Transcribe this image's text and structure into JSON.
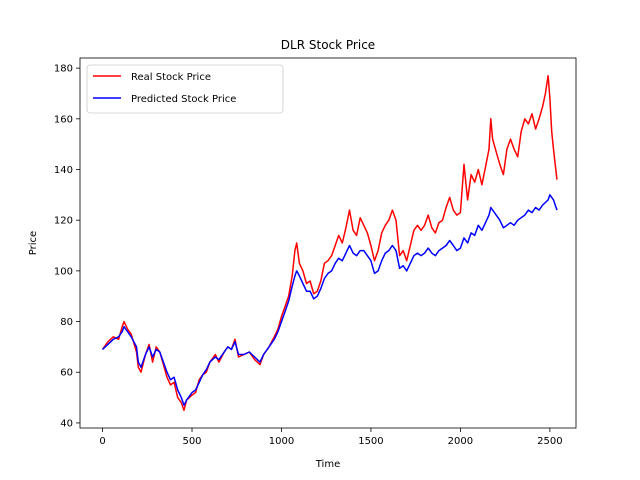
{
  "chart_data": {
    "type": "line",
    "title": "DLR Stock Price",
    "xlabel": "Time",
    "ylabel": "Price",
    "xlim": [
      -126,
      2646
    ],
    "ylim": [
      38,
      184
    ],
    "xticks": [
      0,
      500,
      1000,
      1500,
      2000,
      2500
    ],
    "yticks": [
      40,
      60,
      80,
      100,
      120,
      140,
      160,
      180
    ],
    "grid": false,
    "legend_placement": "top-left",
    "series": [
      {
        "name": "Real Stock Price",
        "color": "#ff0000",
        "points": [
          [
            0,
            69
          ],
          [
            30,
            72
          ],
          [
            60,
            74
          ],
          [
            90,
            73
          ],
          [
            110,
            78
          ],
          [
            120,
            80
          ],
          [
            140,
            77
          ],
          [
            160,
            75
          ],
          [
            190,
            68
          ],
          [
            200,
            62
          ],
          [
            215,
            60
          ],
          [
            240,
            67
          ],
          [
            260,
            71
          ],
          [
            280,
            64
          ],
          [
            300,
            70
          ],
          [
            320,
            68
          ],
          [
            340,
            63
          ],
          [
            360,
            58
          ],
          [
            380,
            55
          ],
          [
            400,
            56
          ],
          [
            420,
            50
          ],
          [
            440,
            48
          ],
          [
            455,
            45
          ],
          [
            470,
            49
          ],
          [
            500,
            51
          ],
          [
            520,
            52
          ],
          [
            540,
            57
          ],
          [
            560,
            59
          ],
          [
            580,
            60
          ],
          [
            600,
            64
          ],
          [
            630,
            67
          ],
          [
            650,
            64
          ],
          [
            680,
            68
          ],
          [
            700,
            70
          ],
          [
            720,
            69
          ],
          [
            740,
            73
          ],
          [
            760,
            66
          ],
          [
            790,
            67
          ],
          [
            820,
            68
          ],
          [
            850,
            65
          ],
          [
            880,
            63
          ],
          [
            900,
            67
          ],
          [
            930,
            70
          ],
          [
            960,
            74
          ],
          [
            980,
            77
          ],
          [
            1000,
            82
          ],
          [
            1020,
            86
          ],
          [
            1040,
            90
          ],
          [
            1060,
            98
          ],
          [
            1075,
            108
          ],
          [
            1085,
            111
          ],
          [
            1100,
            103
          ],
          [
            1120,
            100
          ],
          [
            1140,
            95
          ],
          [
            1160,
            96
          ],
          [
            1180,
            91
          ],
          [
            1200,
            92
          ],
          [
            1220,
            96
          ],
          [
            1240,
            103
          ],
          [
            1260,
            104
          ],
          [
            1280,
            106
          ],
          [
            1300,
            110
          ],
          [
            1320,
            114
          ],
          [
            1340,
            111
          ],
          [
            1360,
            117
          ],
          [
            1380,
            124
          ],
          [
            1400,
            116
          ],
          [
            1420,
            114
          ],
          [
            1440,
            121
          ],
          [
            1460,
            118
          ],
          [
            1480,
            115
          ],
          [
            1500,
            110
          ],
          [
            1520,
            104
          ],
          [
            1540,
            108
          ],
          [
            1560,
            115
          ],
          [
            1580,
            118
          ],
          [
            1600,
            120
          ],
          [
            1620,
            124
          ],
          [
            1640,
            120
          ],
          [
            1660,
            106
          ],
          [
            1680,
            108
          ],
          [
            1700,
            104
          ],
          [
            1720,
            110
          ],
          [
            1740,
            116
          ],
          [
            1760,
            118
          ],
          [
            1780,
            116
          ],
          [
            1800,
            118
          ],
          [
            1820,
            122
          ],
          [
            1840,
            117
          ],
          [
            1860,
            115
          ],
          [
            1880,
            119
          ],
          [
            1900,
            120
          ],
          [
            1920,
            125
          ],
          [
            1940,
            129
          ],
          [
            1960,
            124
          ],
          [
            1980,
            122
          ],
          [
            2000,
            123
          ],
          [
            2020,
            142
          ],
          [
            2040,
            128
          ],
          [
            2060,
            138
          ],
          [
            2080,
            135
          ],
          [
            2100,
            140
          ],
          [
            2120,
            134
          ],
          [
            2140,
            141
          ],
          [
            2160,
            148
          ],
          [
            2170,
            160
          ],
          [
            2180,
            152
          ],
          [
            2200,
            147
          ],
          [
            2220,
            142
          ],
          [
            2240,
            138
          ],
          [
            2260,
            148
          ],
          [
            2280,
            152
          ],
          [
            2300,
            148
          ],
          [
            2320,
            145
          ],
          [
            2340,
            155
          ],
          [
            2360,
            160
          ],
          [
            2380,
            158
          ],
          [
            2400,
            162
          ],
          [
            2420,
            156
          ],
          [
            2440,
            160
          ],
          [
            2460,
            165
          ],
          [
            2475,
            170
          ],
          [
            2490,
            177
          ],
          [
            2500,
            168
          ],
          [
            2510,
            155
          ],
          [
            2520,
            148
          ],
          [
            2530,
            142
          ],
          [
            2540,
            136
          ]
        ]
      },
      {
        "name": "Predicted Stock Price",
        "color": "#0000ff",
        "points": [
          [
            0,
            69
          ],
          [
            30,
            71
          ],
          [
            60,
            73
          ],
          [
            90,
            74
          ],
          [
            110,
            76
          ],
          [
            120,
            78
          ],
          [
            140,
            76
          ],
          [
            160,
            74
          ],
          [
            190,
            70
          ],
          [
            200,
            64
          ],
          [
            215,
            62
          ],
          [
            240,
            67
          ],
          [
            260,
            70
          ],
          [
            280,
            66
          ],
          [
            300,
            69
          ],
          [
            320,
            68
          ],
          [
            340,
            64
          ],
          [
            360,
            60
          ],
          [
            380,
            57
          ],
          [
            400,
            58
          ],
          [
            420,
            53
          ],
          [
            440,
            50
          ],
          [
            455,
            47
          ],
          [
            470,
            49
          ],
          [
            500,
            52
          ],
          [
            520,
            53
          ],
          [
            540,
            56
          ],
          [
            560,
            59
          ],
          [
            580,
            61
          ],
          [
            600,
            64
          ],
          [
            630,
            66
          ],
          [
            650,
            65
          ],
          [
            680,
            68
          ],
          [
            700,
            70
          ],
          [
            720,
            69
          ],
          [
            740,
            72
          ],
          [
            760,
            67
          ],
          [
            790,
            67
          ],
          [
            820,
            68
          ],
          [
            850,
            66
          ],
          [
            880,
            64
          ],
          [
            900,
            67
          ],
          [
            930,
            70
          ],
          [
            960,
            73
          ],
          [
            980,
            76
          ],
          [
            1000,
            80
          ],
          [
            1020,
            84
          ],
          [
            1040,
            88
          ],
          [
            1060,
            94
          ],
          [
            1075,
            98
          ],
          [
            1085,
            100
          ],
          [
            1100,
            98
          ],
          [
            1120,
            95
          ],
          [
            1140,
            92
          ],
          [
            1160,
            92
          ],
          [
            1180,
            89
          ],
          [
            1200,
            90
          ],
          [
            1220,
            93
          ],
          [
            1240,
            97
          ],
          [
            1260,
            99
          ],
          [
            1280,
            100
          ],
          [
            1300,
            103
          ],
          [
            1320,
            105
          ],
          [
            1340,
            104
          ],
          [
            1360,
            107
          ],
          [
            1380,
            110
          ],
          [
            1400,
            107
          ],
          [
            1420,
            106
          ],
          [
            1440,
            108
          ],
          [
            1460,
            108
          ],
          [
            1480,
            106
          ],
          [
            1500,
            104
          ],
          [
            1520,
            99
          ],
          [
            1540,
            100
          ],
          [
            1560,
            104
          ],
          [
            1580,
            107
          ],
          [
            1600,
            108
          ],
          [
            1620,
            110
          ],
          [
            1640,
            108
          ],
          [
            1660,
            101
          ],
          [
            1680,
            102
          ],
          [
            1700,
            100
          ],
          [
            1720,
            103
          ],
          [
            1740,
            106
          ],
          [
            1760,
            107
          ],
          [
            1780,
            106
          ],
          [
            1800,
            107
          ],
          [
            1820,
            109
          ],
          [
            1840,
            107
          ],
          [
            1860,
            106
          ],
          [
            1880,
            108
          ],
          [
            1900,
            109
          ],
          [
            1920,
            110
          ],
          [
            1940,
            112
          ],
          [
            1960,
            110
          ],
          [
            1980,
            108
          ],
          [
            2000,
            109
          ],
          [
            2020,
            113
          ],
          [
            2040,
            111
          ],
          [
            2060,
            115
          ],
          [
            2080,
            114
          ],
          [
            2100,
            118
          ],
          [
            2120,
            116
          ],
          [
            2140,
            119
          ],
          [
            2160,
            122
          ],
          [
            2170,
            125
          ],
          [
            2180,
            124
          ],
          [
            2200,
            122
          ],
          [
            2220,
            120
          ],
          [
            2240,
            117
          ],
          [
            2260,
            118
          ],
          [
            2280,
            119
          ],
          [
            2300,
            118
          ],
          [
            2320,
            120
          ],
          [
            2340,
            121
          ],
          [
            2360,
            122
          ],
          [
            2380,
            124
          ],
          [
            2400,
            123
          ],
          [
            2420,
            125
          ],
          [
            2440,
            124
          ],
          [
            2460,
            126
          ],
          [
            2475,
            127
          ],
          [
            2490,
            128
          ],
          [
            2500,
            130
          ],
          [
            2510,
            129
          ],
          [
            2520,
            128
          ],
          [
            2530,
            126
          ],
          [
            2540,
            124
          ]
        ]
      }
    ]
  }
}
